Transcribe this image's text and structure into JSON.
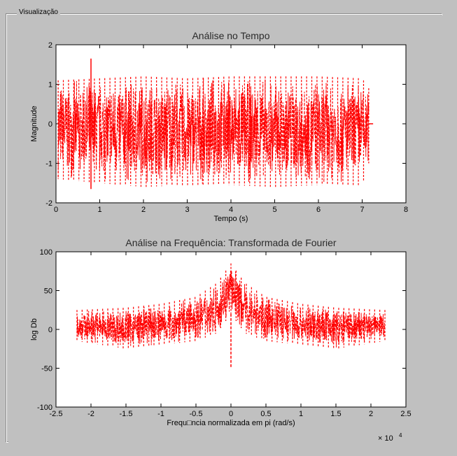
{
  "panel": {
    "title": "Visualização"
  },
  "colors": {
    "background": "#c0c0c0",
    "plot_bg": "#ffffff",
    "signal": "#ff0000"
  },
  "chart_data": [
    {
      "type": "line",
      "title": "Análise no Tempo",
      "xlabel": "Tempo (s)",
      "ylabel": "Magnitude",
      "xlim": [
        0,
        8
      ],
      "ylim": [
        -2,
        2
      ],
      "xticks": [
        0,
        1,
        2,
        3,
        4,
        5,
        6,
        7,
        8
      ],
      "yticks": [
        -2,
        -1,
        0,
        1,
        2
      ],
      "x_exponent_label": "",
      "series": [
        {
          "color": "#ff0000",
          "style": "dashed",
          "x": [
            0.05,
            1.0,
            2.0,
            3.0,
            4.0,
            5.0,
            6.0,
            7.0,
            7.15
          ],
          "upper": [
            1.1,
            1.15,
            1.2,
            1.15,
            1.2,
            1.2,
            1.2,
            1.15,
            0.9
          ],
          "lower": [
            -1.4,
            -1.5,
            -1.6,
            -1.55,
            -1.55,
            -1.6,
            -1.55,
            -1.55,
            -1.0
          ],
          "peak": {
            "x": 0.8,
            "y": 1.65
          },
          "trough": {
            "x": 0.8,
            "y": -1.65
          }
        }
      ]
    },
    {
      "type": "line",
      "title": "Análise na Frequência: Transformada de Fourier",
      "xlabel": "Frequ□ncia normalizada em pi (rad/s)",
      "ylabel": "log Db",
      "xlim": [
        -2.5,
        2.5
      ],
      "ylim": [
        -100,
        100
      ],
      "xticks": [
        -2.5,
        -2,
        -1.5,
        -1,
        -0.5,
        0,
        0.5,
        1,
        1.5,
        2,
        2.5
      ],
      "yticks": [
        -100,
        -50,
        0,
        50,
        100
      ],
      "x_exponent_label": "× 10",
      "x_exponent_power": "4",
      "series": [
        {
          "color": "#ff0000",
          "style": "dashed",
          "x": [
            -2.2,
            -1.5,
            -1.0,
            -0.5,
            -0.2,
            0.0,
            0.2,
            0.5,
            1.0,
            1.5,
            2.2
          ],
          "upper": [
            25,
            28,
            33,
            42,
            60,
            85,
            60,
            42,
            33,
            28,
            25
          ],
          "lower": [
            -15,
            -25,
            -20,
            -15,
            -5,
            20,
            -5,
            -15,
            -20,
            -25,
            -15
          ],
          "dip": {
            "x": 0.0,
            "y": -50
          }
        }
      ]
    }
  ]
}
